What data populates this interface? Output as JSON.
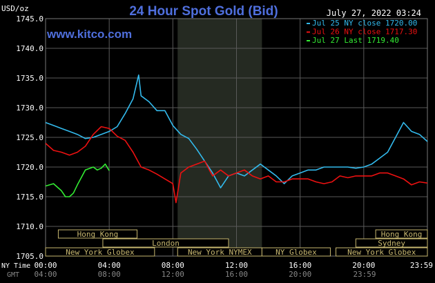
{
  "chart_data": {
    "type": "line",
    "title": "24 Hour Spot Gold (Bid)",
    "watermark": "www.kitco.com",
    "timestamp": "July 27, 2022 03:24",
    "ylabel": "USD/oz",
    "ylim": [
      1705,
      1745
    ],
    "yticks": [
      "1745.0",
      "1740.0",
      "1735.0",
      "1730.0",
      "1725.0",
      "1720.0",
      "1715.0",
      "1710.0",
      "1705.0"
    ],
    "xlim": [
      0,
      24
    ],
    "x_ticks_ny": [
      "00:00",
      "04:00",
      "08:00",
      "12:00",
      "16:00",
      "20:00",
      "23:59"
    ],
    "x_ticks_gmt": [
      "04:00",
      "08:00",
      "12:00",
      "16:00",
      "20:00",
      "23:59"
    ],
    "x_row_labels": {
      "ny": "NY Time",
      "gmt": "GMT"
    },
    "nymex_shade": [
      8.3,
      13.6
    ],
    "grid": true,
    "legend_position": "top-right",
    "sessions": [
      {
        "label": "Hong Kong",
        "start": 0.8,
        "end": 5.75,
        "row": 0
      },
      {
        "label": "London",
        "start": 3.6,
        "end": 11.5,
        "row": 1
      },
      {
        "label": "New York Globex",
        "start": 0,
        "end": 6.85,
        "row": 2
      },
      {
        "label": "New York NYMEX",
        "start": 8.3,
        "end": 13.6,
        "row": 2
      },
      {
        "label": "NY Globex",
        "start": 13.6,
        "end": 17.9,
        "row": 2
      },
      {
        "label": "Hong Kong",
        "start": 20.75,
        "end": 24,
        "row": 0
      },
      {
        "label": "Sydney",
        "start": 19.5,
        "end": 24,
        "row": 1
      },
      {
        "label": "New York Globex",
        "start": 18.25,
        "end": 24,
        "row": 2
      }
    ],
    "series": [
      {
        "name": "Jul 25 NY close 1720.00",
        "color": "#33bbee",
        "x": [
          0,
          0.5,
          1,
          1.5,
          2,
          2.5,
          3,
          3.5,
          4,
          4.5,
          5,
          5.5,
          5.85,
          6,
          6.5,
          7,
          7.5,
          8,
          8.5,
          9,
          9.5,
          10,
          10.5,
          11,
          11.5,
          12,
          12.5,
          13,
          13.5,
          14,
          14.5,
          15,
          15.5,
          16,
          16.5,
          17,
          17.5,
          18,
          18.5,
          19,
          19.5,
          20,
          20.5,
          21,
          21.5,
          22,
          22.5,
          23,
          23.5,
          24
        ],
        "y": [
          1727.5,
          1727,
          1726.5,
          1726,
          1725.5,
          1724.8,
          1725,
          1725.5,
          1726,
          1726.8,
          1729,
          1731.5,
          1735.5,
          1732,
          1731,
          1729.5,
          1729.5,
          1727,
          1725.5,
          1724.8,
          1723,
          1721,
          1719,
          1716.5,
          1718.5,
          1719,
          1718.5,
          1719.5,
          1720.5,
          1719.5,
          1718.5,
          1717.2,
          1718.5,
          1719,
          1719.5,
          1719.5,
          1720,
          1720,
          1720,
          1720,
          1719.8,
          1720,
          1720.5,
          1721.5,
          1722.5,
          1725,
          1727.5,
          1726,
          1725.5,
          1724.3
        ]
      },
      {
        "name": "Jul 26 NY close 1717.30",
        "color": "#ee1111",
        "x": [
          0,
          0.5,
          1,
          1.5,
          2,
          2.5,
          3,
          3.5,
          4,
          4.5,
          5,
          5.5,
          6,
          6.5,
          7,
          7.5,
          8,
          8.2,
          8.5,
          9,
          9.5,
          10,
          10.5,
          11,
          11.5,
          12,
          12.5,
          13,
          13.5,
          14,
          14.5,
          15,
          15.5,
          16,
          16.5,
          17,
          17.5,
          18,
          18.5,
          19,
          19.5,
          20,
          20.5,
          21,
          21.5,
          22,
          22.5,
          23,
          23.5,
          24
        ],
        "y": [
          1724,
          1722.8,
          1722.5,
          1722,
          1722.5,
          1723.5,
          1725.5,
          1726.8,
          1726.5,
          1725.2,
          1724.5,
          1722.5,
          1720,
          1719.5,
          1718.8,
          1718,
          1717.2,
          1714,
          1719,
          1720,
          1720.5,
          1721,
          1718.5,
          1719.5,
          1718.5,
          1719,
          1719.5,
          1718.5,
          1718,
          1718.5,
          1717.5,
          1717.5,
          1718,
          1718,
          1718,
          1717.5,
          1717.2,
          1717.5,
          1718.5,
          1718.2,
          1718.5,
          1718.5,
          1718.5,
          1719,
          1719,
          1718.5,
          1718,
          1717,
          1717.5,
          1717.3
        ]
      },
      {
        "name": "Jul 27 Last 1719.40",
        "color": "#33ee33",
        "x": [
          0,
          0.5,
          1,
          1.25,
          1.5,
          1.75,
          2,
          2.5,
          3,
          3.25,
          3.5,
          3.75,
          4
        ],
        "y": [
          1716.8,
          1717.2,
          1716,
          1715,
          1715,
          1715.6,
          1717,
          1719.5,
          1720,
          1719.5,
          1719.8,
          1720.5,
          1719.4
        ]
      }
    ]
  }
}
